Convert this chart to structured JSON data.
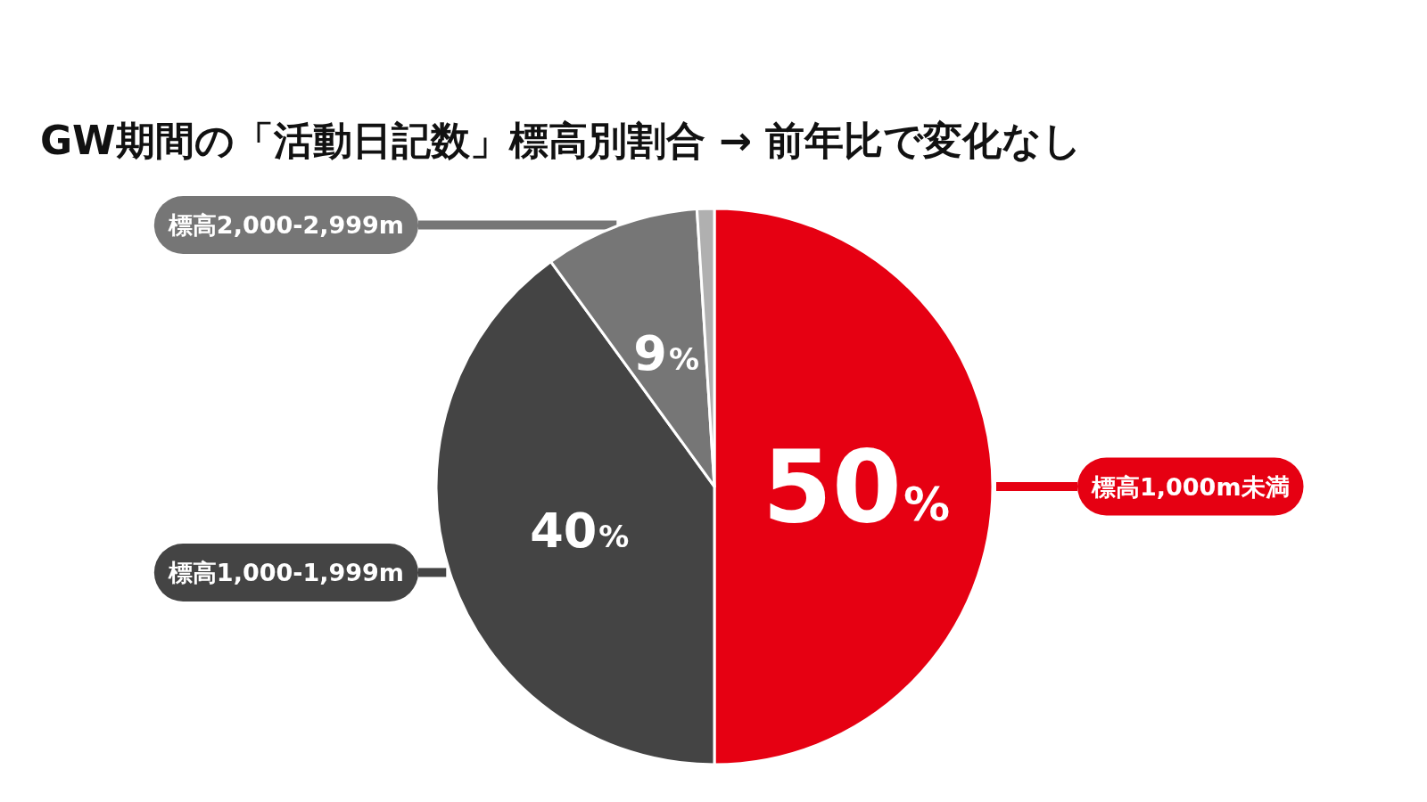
{
  "chart_data": {
    "type": "pie",
    "title": "GW期間の「活動日記数」標高別割合 → 前年比で変化なし",
    "categories": [
      "標高1,000m未満",
      "標高1,000-1,999m",
      "標高2,000-2,999m",
      null
    ],
    "values": [
      50,
      40,
      9,
      1
    ],
    "colors": [
      "#e60012",
      "#444444",
      "#767676",
      "#b0b0b0"
    ],
    "value_labels": [
      "50%",
      "40%",
      "9%",
      null
    ],
    "legend": false
  }
}
